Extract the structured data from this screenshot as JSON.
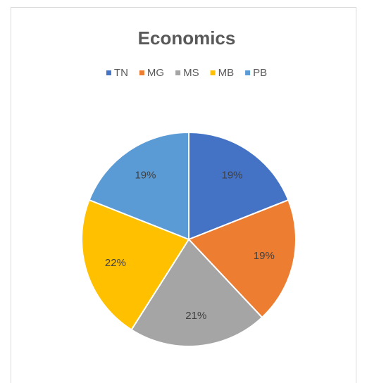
{
  "chart_data": {
    "type": "pie",
    "title": "Economics",
    "categories": [
      "TN",
      "MG",
      "MS",
      "MB",
      "PB"
    ],
    "values": [
      19,
      19,
      21,
      22,
      19
    ],
    "value_labels": [
      "19%",
      "19%",
      "21%",
      "22%",
      "19%"
    ],
    "colors": [
      "#4472c4",
      "#ed7d31",
      "#a5a5a5",
      "#ffc000",
      "#5b9bd5"
    ],
    "legend": "top"
  }
}
